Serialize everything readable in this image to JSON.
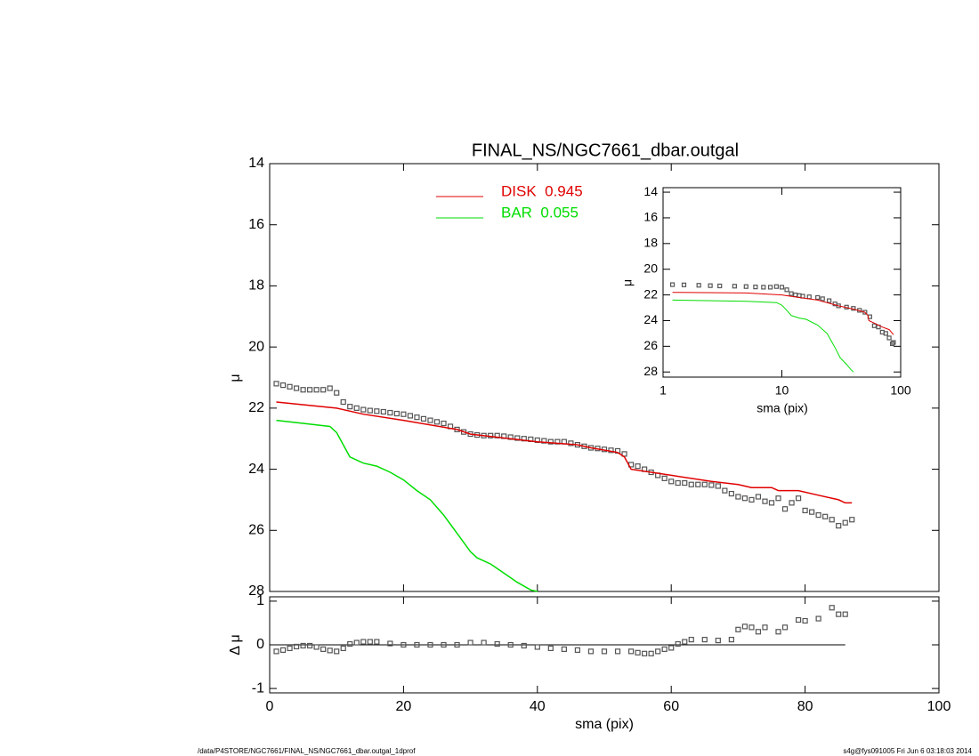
{
  "chart_data": [
    {
      "type": "line",
      "title": "FINAL_NS/NGC7661_dbar.outgal",
      "ylabel": "μ",
      "xlim": [
        0,
        100
      ],
      "xticks": [
        0,
        20,
        40,
        60,
        80,
        100
      ],
      "xtick_labels": false,
      "ylim": [
        28,
        14
      ],
      "yticks": [
        14,
        16,
        18,
        20,
        22,
        24,
        26,
        28
      ],
      "legend": true,
      "series": [
        {
          "color": "#555555",
          "marker": "square",
          "x": [
            1,
            2,
            3,
            4,
            5,
            6,
            7,
            8,
            9,
            10,
            11,
            12,
            13,
            14,
            15,
            16,
            17,
            18,
            19,
            20,
            21,
            22,
            23,
            24,
            25,
            26,
            27,
            28,
            29,
            30,
            31,
            32,
            33,
            34,
            35,
            36,
            37,
            38,
            39,
            40,
            41,
            42,
            43,
            44,
            45,
            46,
            47,
            48,
            49,
            50,
            51,
            52,
            53,
            54,
            55,
            56,
            57,
            58,
            59,
            60,
            61,
            62,
            63,
            64,
            65,
            66,
            67,
            68,
            69,
            70,
            71,
            72,
            73,
            74,
            75,
            76,
            77,
            78,
            79,
            80,
            81,
            82,
            83,
            84,
            85,
            86,
            87
          ],
          "values": [
            21.2,
            21.25,
            21.3,
            21.35,
            21.4,
            21.4,
            21.4,
            21.4,
            21.35,
            21.5,
            21.8,
            21.95,
            22.0,
            22.05,
            22.08,
            22.1,
            22.12,
            22.15,
            22.18,
            22.2,
            22.25,
            22.3,
            22.35,
            22.4,
            22.45,
            22.5,
            22.6,
            22.7,
            22.78,
            22.85,
            22.88,
            22.9,
            22.9,
            22.9,
            22.92,
            22.95,
            22.98,
            23.0,
            23.02,
            23.05,
            23.07,
            23.1,
            23.1,
            23.1,
            23.15,
            23.2,
            23.25,
            23.3,
            23.32,
            23.35,
            23.38,
            23.4,
            23.5,
            23.85,
            23.9,
            24.0,
            24.1,
            24.2,
            24.3,
            24.4,
            24.45,
            24.45,
            24.5,
            24.5,
            24.5,
            24.52,
            24.55,
            24.7,
            24.8,
            24.9,
            24.95,
            25.0,
            24.9,
            25.05,
            25.1,
            24.95,
            25.3,
            25.1,
            24.95,
            25.35,
            25.4,
            25.5,
            25.55,
            25.65,
            25.85,
            25.75,
            25.65
          ]
        },
        {
          "name": "DISK  0.945",
          "color": "#e00000",
          "x": [
            1,
            10,
            14,
            20,
            28,
            30,
            40,
            46,
            48,
            52,
            53,
            54,
            60,
            66,
            70,
            72,
            75,
            76,
            79,
            82,
            85,
            86,
            87
          ],
          "values": [
            21.8,
            22.0,
            22.2,
            22.4,
            22.7,
            22.85,
            23.1,
            23.2,
            23.3,
            23.45,
            23.6,
            24.0,
            24.2,
            24.4,
            24.5,
            24.6,
            24.6,
            24.7,
            24.7,
            24.85,
            25.0,
            25.1,
            25.1
          ]
        },
        {
          "name": "BAR  0.055",
          "color": "#00dd00",
          "x": [
            1,
            5,
            9,
            10,
            11,
            12,
            14,
            16,
            18,
            20,
            22,
            24,
            26,
            28,
            30,
            31,
            33,
            35,
            37,
            39,
            40
          ],
          "values": [
            22.4,
            22.5,
            22.6,
            22.8,
            23.2,
            23.6,
            23.8,
            23.9,
            24.1,
            24.35,
            24.7,
            25.0,
            25.5,
            26.1,
            26.7,
            26.9,
            27.1,
            27.4,
            27.7,
            27.95,
            28.0
          ]
        }
      ]
    },
    {
      "type": "scatter",
      "xlabel": "sma (pix)",
      "ylabel": "Δ μ",
      "xlim": [
        0,
        100
      ],
      "xticks": [
        0,
        20,
        40,
        60,
        80,
        100
      ],
      "ylim": [
        -1.1,
        1.1
      ],
      "yticks": [
        -1,
        0,
        1
      ],
      "hline": 0,
      "series": [
        {
          "color": "#555555",
          "marker": "square",
          "x": [
            1,
            2,
            3,
            4,
            5,
            6,
            7,
            8,
            9,
            10,
            11,
            12,
            13,
            14,
            15,
            16,
            18,
            20,
            22,
            24,
            26,
            28,
            30,
            32,
            34,
            36,
            38,
            40,
            42,
            44,
            46,
            48,
            50,
            52,
            54,
            55,
            56,
            57,
            58,
            59,
            60,
            61,
            62,
            63,
            65,
            67,
            69,
            70,
            71,
            72,
            73,
            74,
            76,
            77,
            79,
            80,
            82,
            84,
            85,
            86
          ],
          "values": [
            -0.15,
            -0.12,
            -0.08,
            -0.04,
            -0.02,
            -0.02,
            -0.05,
            -0.1,
            -0.13,
            -0.15,
            -0.08,
            0.02,
            0.05,
            0.07,
            0.07,
            0.07,
            0.03,
            0.0,
            0.0,
            0.0,
            0.0,
            0.0,
            0.05,
            0.05,
            0.02,
            0.0,
            -0.02,
            -0.05,
            -0.08,
            -0.1,
            -0.12,
            -0.15,
            -0.15,
            -0.15,
            -0.15,
            -0.18,
            -0.2,
            -0.2,
            -0.15,
            -0.1,
            -0.07,
            0.02,
            0.07,
            0.12,
            0.12,
            0.1,
            0.12,
            0.35,
            0.42,
            0.4,
            0.3,
            0.4,
            0.3,
            0.4,
            0.57,
            0.55,
            0.6,
            0.85,
            0.7,
            0.7
          ]
        }
      ]
    },
    {
      "type": "line",
      "xlabel": "sma (pix)",
      "ylabel": "μ",
      "xlog": true,
      "xlim": [
        1,
        100
      ],
      "xticks": [
        1,
        10,
        100
      ],
      "ylim": [
        28.4,
        13.65
      ],
      "yticks": [
        14,
        16,
        18,
        20,
        22,
        24,
        26,
        28
      ],
      "series": [
        {
          "color": "#555555",
          "marker": "square",
          "x": [
            1.2,
            1.5,
            2,
            2.5,
            3,
            4,
            5,
            6,
            7,
            8,
            9,
            10,
            11,
            12,
            13,
            14,
            15,
            17,
            20,
            22,
            25,
            28,
            30,
            35,
            40,
            45,
            50,
            55,
            60,
            65,
            70,
            75,
            80,
            85,
            87
          ],
          "values": [
            21.2,
            21.22,
            21.25,
            21.28,
            21.3,
            21.32,
            21.35,
            21.38,
            21.4,
            21.4,
            21.35,
            21.4,
            21.6,
            21.9,
            22.0,
            22.05,
            22.1,
            22.15,
            22.2,
            22.3,
            22.45,
            22.7,
            22.85,
            22.95,
            23.05,
            23.2,
            23.35,
            23.7,
            24.4,
            24.5,
            24.9,
            25.0,
            25.35,
            25.8,
            25.7
          ]
        },
        {
          "color": "#e00000",
          "x": [
            1.2,
            5,
            10,
            14,
            20,
            30,
            40,
            50,
            53,
            54,
            60,
            70,
            80,
            87
          ],
          "values": [
            21.8,
            21.85,
            22.0,
            22.2,
            22.4,
            22.85,
            23.1,
            23.35,
            23.6,
            24.0,
            24.2,
            24.5,
            24.7,
            25.1
          ]
        },
        {
          "color": "#00dd00",
          "x": [
            1.2,
            5,
            9,
            10,
            11,
            12,
            14,
            16,
            20,
            24,
            28,
            31,
            35,
            38,
            40
          ],
          "values": [
            22.4,
            22.5,
            22.6,
            22.8,
            23.2,
            23.6,
            23.8,
            23.9,
            24.35,
            25.0,
            26.1,
            26.9,
            27.4,
            27.8,
            28.0
          ]
        }
      ]
    }
  ],
  "footer_left": "/data/P4STORE/NGC7661/FINAL_NS/NGC7661_dbar.outgal_1dprof",
  "footer_right": "s4g@fys091005  Fri Jun  6 03:18:03 2014"
}
